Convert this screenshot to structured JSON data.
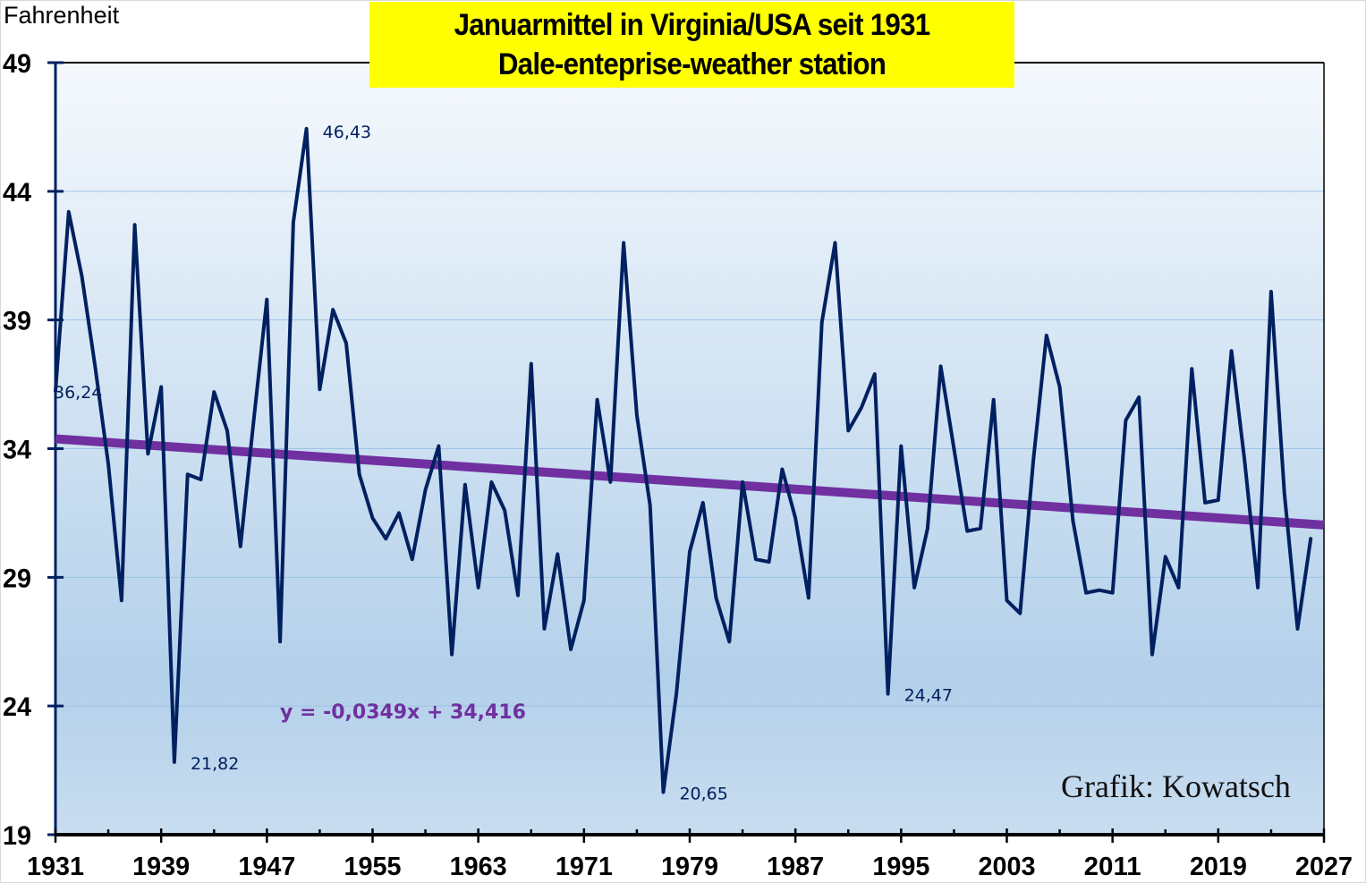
{
  "chart_data": {
    "type": "line",
    "title": "Januarmittel in Virginia/USA seit 1931",
    "subtitle": "Dale-enteprise-weather station",
    "xlabel": "",
    "ylabel": "Fahrenheit",
    "xlim": [
      1931,
      2027
    ],
    "ylim": [
      19,
      49
    ],
    "x_ticks": [
      1931,
      1939,
      1947,
      1955,
      1963,
      1971,
      1979,
      1987,
      1995,
      2003,
      2011,
      2019,
      2027
    ],
    "x_tick_labels": [
      "1931",
      "1939",
      "1947",
      "1955",
      "1963",
      "1971",
      "1979",
      "1987",
      "1995",
      "2003",
      "2011",
      "2019",
      "2027"
    ],
    "y_ticks": [
      19,
      24,
      29,
      34,
      39,
      44,
      49
    ],
    "y_tick_labels": [
      "19",
      "24",
      "29",
      "34",
      "39",
      "44",
      "49"
    ],
    "grid": "horizontal",
    "series": [
      {
        "name": "Januarmittel",
        "color": "#002060",
        "x": [
          1931,
          1932,
          1933,
          1934,
          1935,
          1936,
          1937,
          1938,
          1939,
          1940,
          1941,
          1942,
          1943,
          1944,
          1945,
          1946,
          1947,
          1948,
          1949,
          1950,
          1951,
          1952,
          1953,
          1954,
          1955,
          1956,
          1957,
          1958,
          1959,
          1960,
          1961,
          1962,
          1963,
          1964,
          1965,
          1966,
          1967,
          1968,
          1969,
          1970,
          1971,
          1972,
          1973,
          1974,
          1975,
          1976,
          1977,
          1978,
          1979,
          1980,
          1981,
          1982,
          1983,
          1984,
          1985,
          1986,
          1987,
          1988,
          1989,
          1990,
          1991,
          1992,
          1993,
          1994,
          1995,
          1996,
          1997,
          1998,
          1999,
          2000,
          2001,
          2002,
          2003,
          2004,
          2005,
          2006,
          2007,
          2008,
          2009,
          2010,
          2011,
          2012,
          2013,
          2014,
          2015,
          2016,
          2017,
          2018,
          2019,
          2020,
          2021,
          2022,
          2023,
          2024,
          2025,
          2026
        ],
        "values": [
          36.24,
          43.2,
          40.7,
          37.2,
          33.4,
          28.1,
          42.7,
          33.8,
          36.4,
          21.82,
          33.0,
          32.8,
          36.2,
          34.7,
          30.2,
          35.1,
          39.8,
          26.5,
          42.8,
          46.43,
          36.3,
          39.4,
          38.1,
          33.0,
          31.3,
          30.5,
          31.5,
          29.7,
          32.4,
          34.1,
          26.0,
          32.6,
          28.6,
          32.7,
          31.6,
          28.3,
          37.3,
          27.0,
          29.9,
          26.2,
          28.1,
          35.9,
          32.7,
          42.0,
          35.3,
          31.8,
          20.65,
          24.5,
          30.0,
          31.9,
          28.2,
          26.5,
          32.7,
          29.7,
          29.6,
          33.2,
          31.3,
          28.2,
          38.9,
          42.0,
          34.7,
          35.6,
          36.9,
          24.47,
          34.1,
          28.6,
          30.9,
          37.2,
          34.0,
          30.8,
          30.9,
          35.9,
          28.1,
          27.6,
          33.5,
          38.4,
          36.4,
          31.2,
          28.4,
          28.5,
          28.4,
          35.1,
          36.0,
          26.0,
          29.8,
          28.6,
          37.1,
          31.9,
          32.0,
          37.8,
          33.5,
          28.6,
          40.1,
          32.3,
          27.0,
          30.5
        ]
      }
    ],
    "data_labels": [
      {
        "x": 1931,
        "value": 36.24,
        "text": "36,24"
      },
      {
        "x": 1940,
        "value": 21.82,
        "text": "21,82"
      },
      {
        "x": 1950,
        "value": 46.43,
        "text": "46,43"
      },
      {
        "x": 1977,
        "value": 20.65,
        "text": "20,65"
      },
      {
        "x": 1994,
        "value": 24.47,
        "text": "24,47"
      }
    ],
    "trendline": {
      "type": "linear",
      "slope": -0.0349,
      "intercept": 34.416,
      "x_index_start_year": 1931,
      "x_end": 2027,
      "color": "#7030a0",
      "equation_label": "y = -0,0349x + 34,416"
    },
    "annotations": [
      "Grafik: Kowatsch"
    ],
    "legend": "none"
  },
  "colors": {
    "line": "#002060",
    "trend": "#7030a0",
    "title_bg": "#ffff00",
    "plot_bg_top": "#f5f9fd",
    "plot_bg_bottom": "#b3d0ea",
    "grid": "#9dc3e6"
  }
}
